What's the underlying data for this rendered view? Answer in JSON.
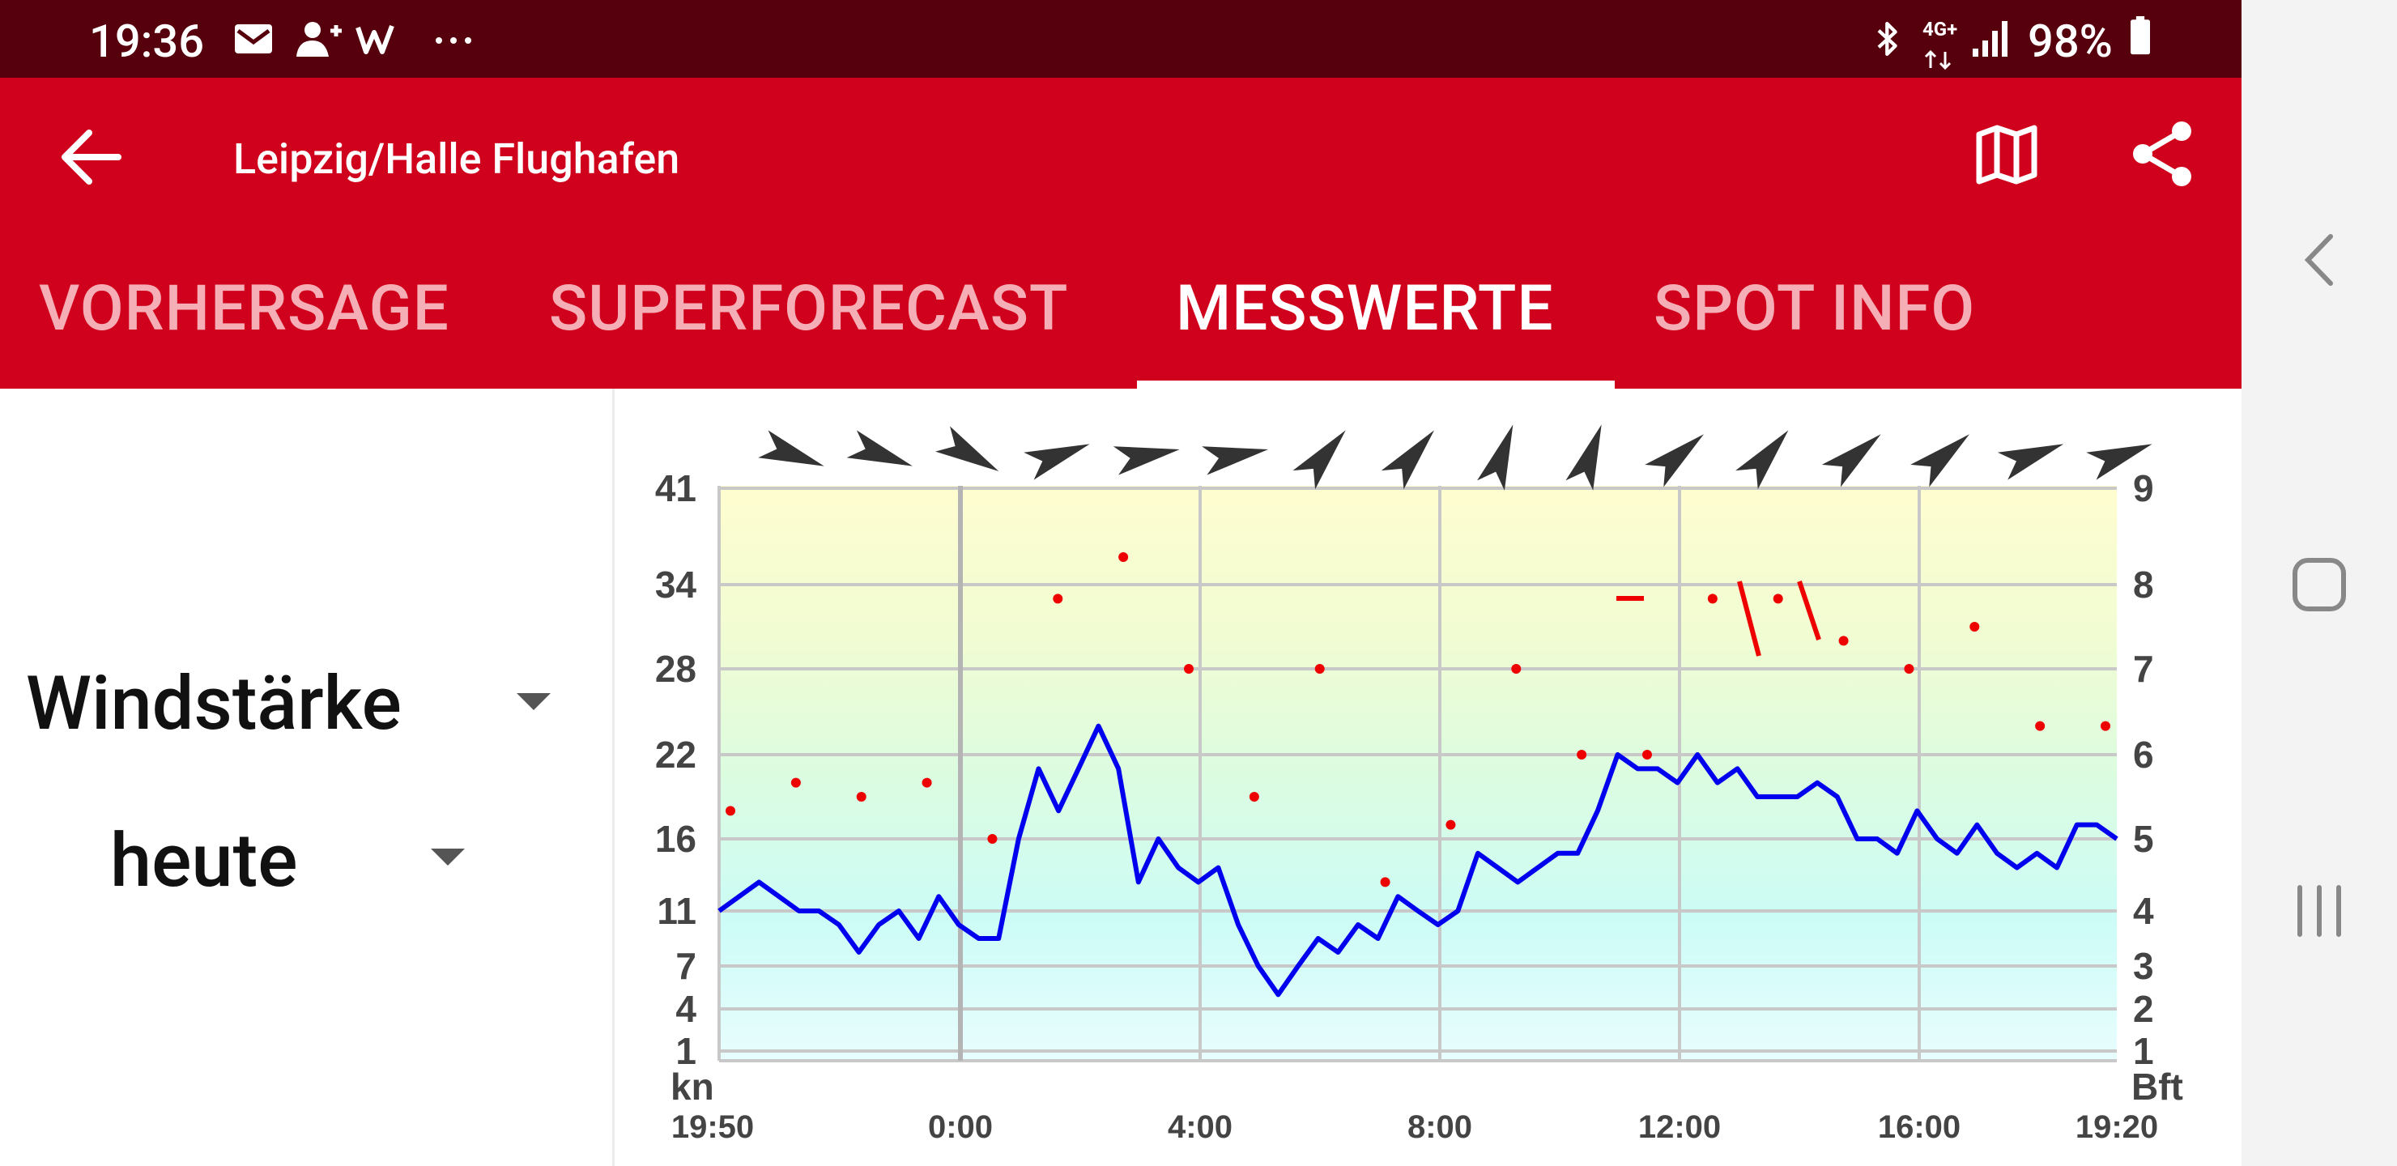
{
  "status_bar": {
    "time": "19:36",
    "battery": "98%",
    "network": "4G+",
    "icons": [
      "mail-icon",
      "add-contact-icon",
      "w-app-icon",
      "more-icon",
      "bluetooth-icon",
      "signal-icon",
      "battery-icon"
    ]
  },
  "app_bar": {
    "title": "Leipzig/Halle Flughafen",
    "back_icon": "arrow-back-icon",
    "map_icon": "map-icon",
    "share_icon": "share-icon"
  },
  "tabs": [
    {
      "label": "VORHERSAGE",
      "active": false
    },
    {
      "label": "SUPERFORECAST",
      "active": false
    },
    {
      "label": "MESSWERTE",
      "active": true
    },
    {
      "label": "SPOT INFO",
      "active": false
    }
  ],
  "controls": {
    "measure": "Windstärke",
    "period": "heute"
  },
  "colors": {
    "status_bar": "#56000d",
    "app_bar": "#cf011c",
    "wind_line": "#0000ee",
    "gust_dots": "#ee0000"
  },
  "chart_data": {
    "type": "line",
    "y_unit_left": "kn",
    "y_unit_right": "Bft",
    "y_ticks_left": [
      1,
      4,
      7,
      11,
      16,
      22,
      28,
      34,
      41
    ],
    "y_ticks_right": [
      1,
      2,
      3,
      4,
      5,
      6,
      7,
      8,
      9
    ],
    "x_tick_labels": [
      "19:50",
      "0:00",
      "4:00",
      "8:00",
      "12:00",
      "16:00",
      "19:20"
    ],
    "ylim": [
      0,
      41
    ],
    "grid": true,
    "series": [
      {
        "values": [
          11,
          12,
          13,
          12,
          11,
          11,
          10,
          8,
          10,
          11,
          9,
          12,
          10,
          9,
          9,
          16,
          21,
          18,
          21,
          24,
          21,
          13,
          16,
          14,
          13,
          14,
          10,
          7,
          5,
          7,
          9,
          8,
          10,
          9,
          12,
          11,
          10,
          11,
          15,
          14,
          13,
          14,
          15,
          15,
          18,
          22,
          21,
          21,
          20,
          22,
          20,
          21,
          19,
          19,
          19,
          20,
          19,
          16,
          16,
          15,
          18,
          16,
          15,
          17,
          15,
          14,
          15,
          14,
          17,
          17,
          16
        ]
      },
      {
        "values": [
          18,
          20,
          19,
          20,
          16,
          33,
          36,
          28,
          19,
          28,
          13,
          17,
          28,
          22,
          22,
          33,
          33,
          30,
          28,
          31,
          24,
          24
        ]
      }
    ],
    "wind_direction_arrows_deg": [
      290,
      290,
      300,
      250,
      260,
      260,
      220,
      220,
      200,
      200,
      230,
      220,
      230,
      230,
      250,
      250
    ]
  }
}
